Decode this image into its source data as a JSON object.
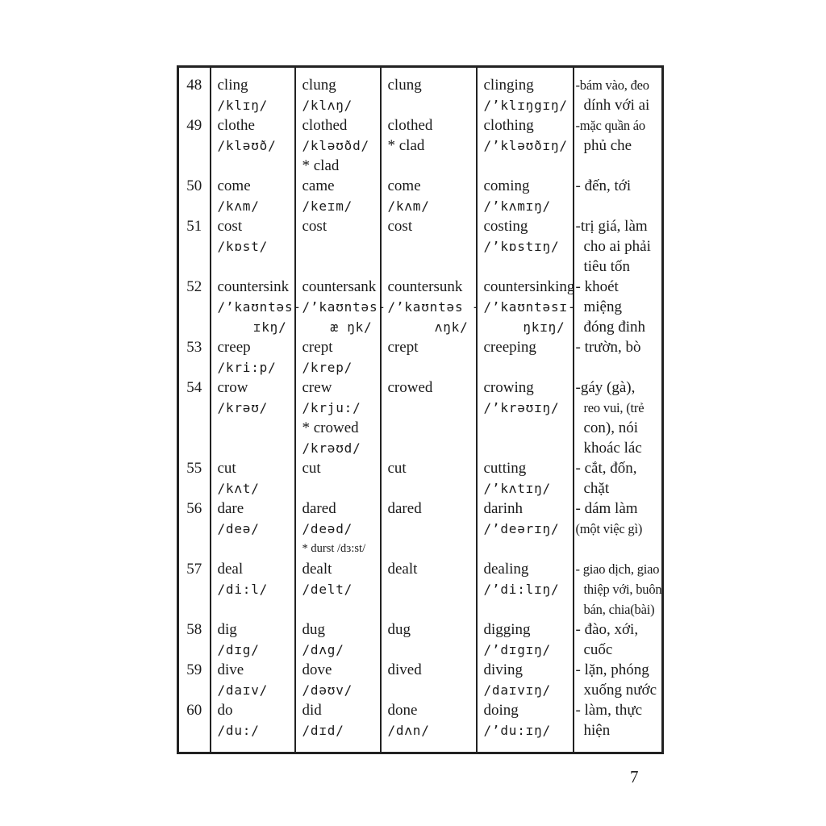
{
  "page": {
    "number": "7"
  },
  "table": {
    "rows": [
      {
        "num": "48",
        "cells": [
          [
            {
              "t": "cling",
              "s": "word"
            },
            {
              "t": "/klɪŋ/",
              "s": "ipa"
            }
          ],
          [
            {
              "t": "clung",
              "s": "word"
            },
            {
              "t": "/klʌŋ/",
              "s": "ipa"
            }
          ],
          [
            {
              "t": "clung",
              "s": "word"
            }
          ],
          [
            {
              "t": "clinging",
              "s": "word"
            },
            {
              "t": "/’klɪŋgɪŋ/",
              "s": "ipa"
            }
          ],
          [
            {
              "t": "-bám vào, đeo",
              "s": "vn tight"
            },
            {
              "t": "dính với ai",
              "s": "vn ind"
            }
          ]
        ]
      },
      {
        "num": "49",
        "cells": [
          [
            {
              "t": "clothe",
              "s": "word"
            },
            {
              "t": "/kləʊð/",
              "s": "ipa"
            }
          ],
          [
            {
              "t": "clothed",
              "s": "word"
            },
            {
              "t": "/kləʊðd/",
              "s": "ipa"
            },
            {
              "t": "* clad",
              "s": "word"
            }
          ],
          [
            {
              "t": "clothed",
              "s": "word"
            },
            {
              "t": "* clad",
              "s": "word"
            }
          ],
          [
            {
              "t": "clothing",
              "s": "word"
            },
            {
              "t": "/’kləʊðɪŋ/",
              "s": "ipa"
            }
          ],
          [
            {
              "t": "-mặc quần áo",
              "s": "vn tight"
            },
            {
              "t": "phủ che",
              "s": "vn ind"
            }
          ]
        ]
      },
      {
        "num": "50",
        "cells": [
          [
            {
              "t": "come",
              "s": "word"
            },
            {
              "t": "/kʌm/",
              "s": "ipa"
            }
          ],
          [
            {
              "t": "came",
              "s": "word"
            },
            {
              "t": "/keɪm/",
              "s": "ipa"
            }
          ],
          [
            {
              "t": "come",
              "s": "word"
            },
            {
              "t": "/kʌm/",
              "s": "ipa"
            }
          ],
          [
            {
              "t": "coming",
              "s": "word"
            },
            {
              "t": "/’kʌmɪŋ/",
              "s": "ipa"
            }
          ],
          [
            {
              "t": "- đến, tới",
              "s": "vn"
            }
          ]
        ]
      },
      {
        "num": "51",
        "cells": [
          [
            {
              "t": "cost",
              "s": "word"
            },
            {
              "t": "/kɒst/",
              "s": "ipa"
            }
          ],
          [
            {
              "t": "cost",
              "s": "word"
            }
          ],
          [
            {
              "t": "cost",
              "s": "word"
            }
          ],
          [
            {
              "t": "costing",
              "s": "word"
            },
            {
              "t": "/’kɒstɪŋ/",
              "s": "ipa"
            }
          ],
          [
            {
              "t": "-trị giá, làm",
              "s": "vn"
            },
            {
              "t": "cho ai phải",
              "s": "vn ind"
            },
            {
              "t": "tiêu tốn",
              "s": "vn ind"
            }
          ]
        ]
      },
      {
        "num": "52",
        "cells": [
          [
            {
              "t": "countersink",
              "s": "word"
            },
            {
              "t": "/’kaʊntəs-",
              "s": "ipa"
            },
            {
              "t": "ɪkŋ/",
              "s": "ipa ipa-r"
            }
          ],
          [
            {
              "t": "countersank",
              "s": "word"
            },
            {
              "t": "/’kaʊntəs-",
              "s": "ipa"
            },
            {
              "t": "æ ŋk/",
              "s": "ipa ipa-r"
            }
          ],
          [
            {
              "t": "countersunk",
              "s": "word"
            },
            {
              "t": "/’kaʊntəs -",
              "s": "ipa"
            },
            {
              "t": "ʌŋk/",
              "s": "ipa ipa-r"
            }
          ],
          [
            {
              "t": "countersinking",
              "s": "word"
            },
            {
              "t": "/’kaʊntəsɪ-",
              "s": "ipa"
            },
            {
              "t": "ŋkɪŋ/",
              "s": "ipa ipa-r"
            }
          ],
          [
            {
              "t": "- khoét",
              "s": "vn"
            },
            {
              "t": "miệng",
              "s": "vn ind"
            },
            {
              "t": "đóng đinh",
              "s": "vn ind"
            }
          ]
        ]
      },
      {
        "num": "53",
        "cells": [
          [
            {
              "t": "creep",
              "s": "word"
            },
            {
              "t": "/kri:p/",
              "s": "ipa"
            }
          ],
          [
            {
              "t": "crept",
              "s": "word"
            },
            {
              "t": "/krep/",
              "s": "ipa"
            }
          ],
          [
            {
              "t": "crept",
              "s": "word"
            }
          ],
          [
            {
              "t": "creeping",
              "s": "word"
            }
          ],
          [
            {
              "t": "- trườn, bò",
              "s": "vn"
            }
          ]
        ]
      },
      {
        "num": "54",
        "cells": [
          [
            {
              "t": "crow",
              "s": "word"
            },
            {
              "t": "/krəʊ/",
              "s": "ipa"
            }
          ],
          [
            {
              "t": "crew",
              "s": "word"
            },
            {
              "t": "/krju:/",
              "s": "ipa"
            },
            {
              "t": "* crowed",
              "s": "word"
            },
            {
              "t": "/krəʊd/",
              "s": "ipa"
            }
          ],
          [
            {
              "t": "crowed",
              "s": "word"
            }
          ],
          [
            {
              "t": "crowing",
              "s": "word"
            },
            {
              "t": "/’krəʊɪŋ/",
              "s": "ipa"
            }
          ],
          [
            {
              "t": "-gáy (gà),",
              "s": "vn"
            },
            {
              "t": "reo vui, (trẻ",
              "s": "vn ind tight"
            },
            {
              "t": "con), nói",
              "s": "vn ind"
            },
            {
              "t": "khoác lác",
              "s": "vn ind"
            }
          ]
        ]
      },
      {
        "num": "55",
        "cells": [
          [
            {
              "t": "cut",
              "s": "word"
            },
            {
              "t": "/kʌt/",
              "s": "ipa"
            }
          ],
          [
            {
              "t": "cut",
              "s": "word"
            }
          ],
          [
            {
              "t": "cut",
              "s": "word"
            }
          ],
          [
            {
              "t": "cutting",
              "s": "word"
            },
            {
              "t": "/’kʌtɪŋ/",
              "s": "ipa"
            }
          ],
          [
            {
              "t": "- cắt, đốn,",
              "s": "vn"
            },
            {
              "t": "chặt",
              "s": "vn ind"
            }
          ]
        ]
      },
      {
        "num": "56",
        "cells": [
          [
            {
              "t": "dare",
              "s": "word"
            },
            {
              "t": "/deə/",
              "s": "ipa"
            }
          ],
          [
            {
              "t": "dared",
              "s": "word"
            },
            {
              "t": "/deəd/",
              "s": "ipa"
            },
            {
              "t": "* durst /dɜ:st/",
              "s": "word small"
            }
          ],
          [
            {
              "t": "dared",
              "s": "word"
            }
          ],
          [
            {
              "t": "darinh",
              "s": "word"
            },
            {
              "t": "/’deərɪŋ/",
              "s": "ipa"
            }
          ],
          [
            {
              "t": "- dám làm",
              "s": "vn"
            },
            {
              "t": "(một việc gì)",
              "s": "vn tight"
            }
          ]
        ]
      },
      {
        "num": "57",
        "cells": [
          [
            {
              "t": "deal",
              "s": "word"
            },
            {
              "t": "/di:l/",
              "s": "ipa"
            }
          ],
          [
            {
              "t": "dealt",
              "s": "word"
            },
            {
              "t": "/delt/",
              "s": "ipa"
            }
          ],
          [
            {
              "t": "dealt",
              "s": "word"
            }
          ],
          [
            {
              "t": "dealing",
              "s": "word"
            },
            {
              "t": "/’di:lɪŋ/",
              "s": "ipa"
            }
          ],
          [
            {
              "t": "- giao dịch, giao",
              "s": "vn tight"
            },
            {
              "t": "thiệp với, buôn",
              "s": "vn ind tight"
            },
            {
              "t": "bán, chia(bài)",
              "s": "vn ind tight"
            }
          ]
        ]
      },
      {
        "num": "58",
        "cells": [
          [
            {
              "t": "dig",
              "s": "word"
            },
            {
              "t": "/dɪg/",
              "s": "ipa"
            }
          ],
          [
            {
              "t": "dug",
              "s": "word"
            },
            {
              "t": "/dʌg/",
              "s": "ipa"
            }
          ],
          [
            {
              "t": "dug",
              "s": "word"
            }
          ],
          [
            {
              "t": "digging",
              "s": "word"
            },
            {
              "t": "/’dɪgɪŋ/",
              "s": "ipa"
            }
          ],
          [
            {
              "t": "- đào, xới,",
              "s": "vn"
            },
            {
              "t": "cuốc",
              "s": "vn ind"
            }
          ]
        ]
      },
      {
        "num": "59",
        "cells": [
          [
            {
              "t": "dive",
              "s": "word"
            },
            {
              "t": "/daɪv/",
              "s": "ipa"
            }
          ],
          [
            {
              "t": "dove",
              "s": "word"
            },
            {
              "t": "/dəʊv/",
              "s": "ipa"
            }
          ],
          [
            {
              "t": "dived",
              "s": "word"
            }
          ],
          [
            {
              "t": "diving",
              "s": "word"
            },
            {
              "t": "/daɪvɪŋ/",
              "s": "ipa"
            }
          ],
          [
            {
              "t": "- lặn, phóng",
              "s": "vn"
            },
            {
              "t": "xuống nước",
              "s": "vn ind"
            }
          ]
        ]
      },
      {
        "num": "60",
        "cells": [
          [
            {
              "t": "do",
              "s": "word"
            },
            {
              "t": "/du:/",
              "s": "ipa"
            }
          ],
          [
            {
              "t": "did",
              "s": "word"
            },
            {
              "t": "/dɪd/",
              "s": "ipa"
            }
          ],
          [
            {
              "t": "done",
              "s": "word"
            },
            {
              "t": "/dʌn/",
              "s": "ipa"
            }
          ],
          [
            {
              "t": "doing",
              "s": "word"
            },
            {
              "t": "/’du:ɪŋ/",
              "s": "ipa"
            }
          ],
          [
            {
              "t": "- làm, thực",
              "s": "vn"
            },
            {
              "t": "hiện",
              "s": "vn ind"
            }
          ]
        ]
      }
    ]
  }
}
